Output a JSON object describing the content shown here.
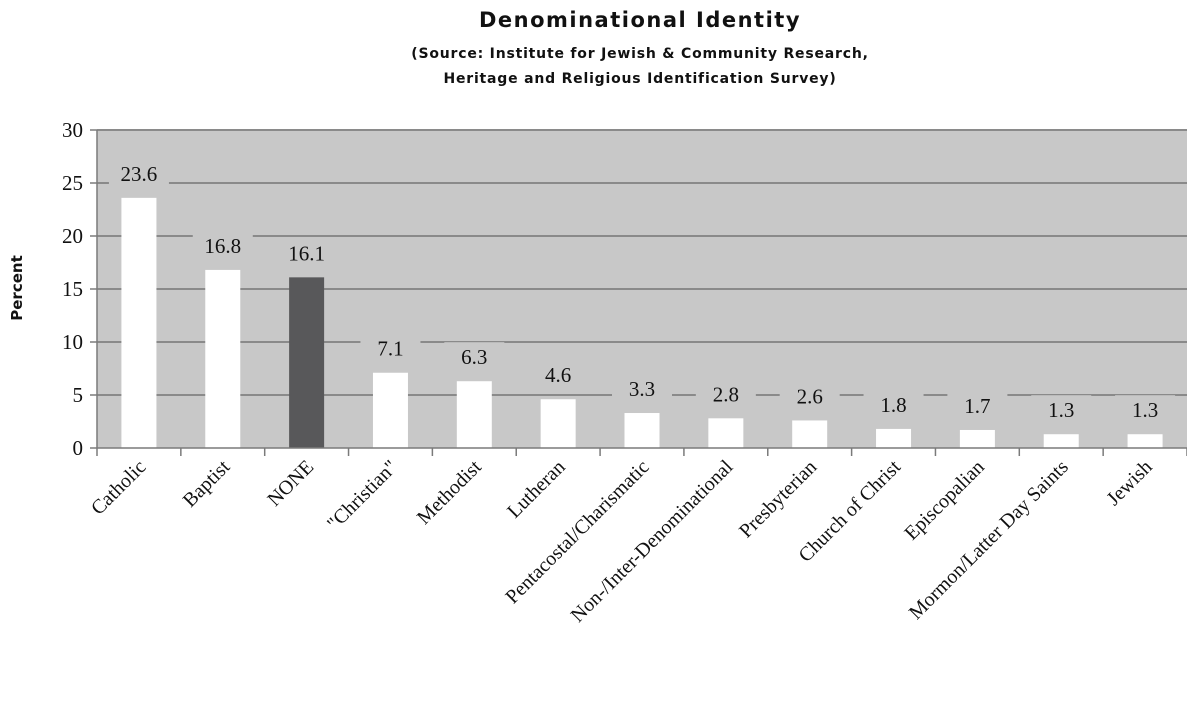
{
  "chart_data": {
    "type": "bar",
    "title": "Denominational Identity",
    "subtitle_lines": [
      "(Source:  Institute for Jewish & Community Research,",
      "Heritage and Religious Identification Survey)"
    ],
    "xlabel": "",
    "ylabel": "Percent",
    "ylim": [
      0,
      30
    ],
    "yticks": [
      0,
      5,
      10,
      15,
      20,
      25,
      30
    ],
    "grid": true,
    "categories": [
      "Catholic",
      "Baptist",
      "NONE",
      "\"Christian\"",
      "Methodist",
      "Lutheran",
      "Pentacostal/Charismatic",
      "Non-/Inter-Denominational",
      "Presbyterian",
      "Church of Christ",
      "Episcopalian",
      "Mormon/Latter Day Saints",
      "Jewish"
    ],
    "values": [
      23.6,
      16.8,
      16.1,
      7.1,
      6.3,
      4.6,
      3.3,
      2.8,
      2.6,
      1.8,
      1.7,
      1.3,
      1.3
    ],
    "data_labels": [
      "23.6",
      "16.8",
      "16.1",
      "7.1",
      "6.3",
      "4.6",
      "3.3",
      "2.8",
      "2.6",
      "1.8",
      "1.7",
      "1.3",
      "1.3"
    ],
    "highlight_index": 2,
    "colors": {
      "plot_background": "#c8c8c8",
      "bar": "#ffffff",
      "highlight_bar": "#58585a",
      "gridline": "#8a8a8a",
      "axis": "#7a7a7a",
      "text": "#111111"
    }
  }
}
